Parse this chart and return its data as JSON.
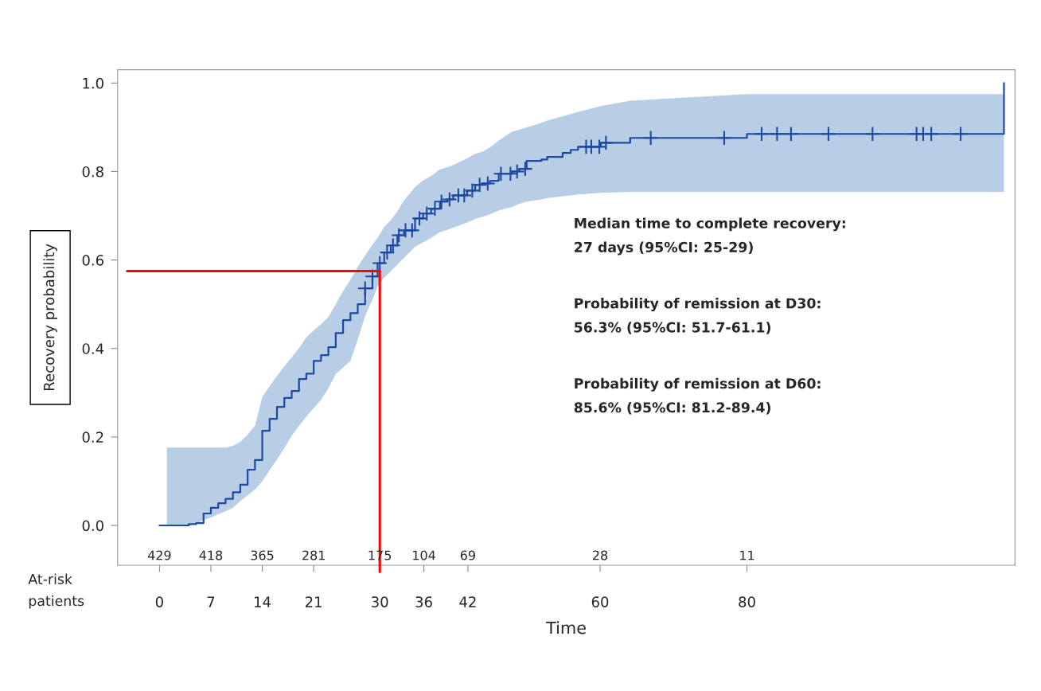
{
  "chart_data": {
    "type": "step",
    "xlabel": "Time",
    "ylabel": "Recovery probability",
    "xlim": [
      -5.7,
      116.5
    ],
    "ylim": [
      -0.09,
      1.03
    ],
    "xticks": [
      0,
      7,
      14,
      21,
      30,
      36,
      42,
      60,
      80
    ],
    "yticks": [
      {
        "value": 0,
        "label": "0.0"
      },
      {
        "value": 0.2,
        "label": "0.2"
      },
      {
        "value": 0.4,
        "label": "0.4"
      },
      {
        "value": 0.6,
        "label": "0.6"
      },
      {
        "value": 0.8,
        "label": "0.8"
      },
      {
        "value": 1,
        "label": "1.0"
      }
    ],
    "grid": false,
    "legend": false,
    "series": [
      {
        "color": "#1f48a0",
        "line_style": "solid",
        "marker": "none",
        "x": [
          0,
          1,
          4,
          5,
          6,
          7,
          8,
          9,
          10,
          11,
          12,
          13,
          14,
          15,
          16,
          17,
          18,
          19,
          20,
          21,
          22,
          23,
          24,
          25,
          26,
          27,
          28,
          29,
          29.7,
          30.6,
          31.5,
          32.4,
          33.3,
          34.8,
          35.9,
          37,
          38.2,
          39.2,
          40,
          41.9,
          43,
          44,
          45,
          46.2,
          48,
          49,
          50,
          52,
          52.8,
          54.9,
          56,
          57,
          60.1,
          64.1,
          80,
          115
        ],
        "values": [
          0,
          0,
          0.003,
          0.005,
          0.027,
          0.04,
          0.05,
          0.06,
          0.075,
          0.092,
          0.126,
          0.148,
          0.214,
          0.241,
          0.268,
          0.288,
          0.304,
          0.331,
          0.343,
          0.372,
          0.385,
          0.403,
          0.435,
          0.464,
          0.48,
          0.5,
          0.536,
          0.563,
          0.593,
          0.617,
          0.633,
          0.656,
          0.667,
          0.694,
          0.705,
          0.716,
          0.732,
          0.737,
          0.746,
          0.757,
          0.77,
          0.773,
          0.779,
          0.795,
          0.8,
          0.806,
          0.824,
          0.827,
          0.833,
          0.842,
          0.849,
          0.856,
          0.865,
          0.876,
          0.885,
          1.0
        ],
        "lower": [
          null,
          0,
          0,
          0.003,
          0.012,
          0.018,
          0.025,
          0.032,
          0.04,
          0.055,
          0.068,
          0.081,
          0.1,
          0.125,
          0.149,
          0.175,
          0.203,
          0.225,
          0.246,
          0.265,
          0.284,
          0.31,
          0.342,
          0.357,
          0.372,
          0.42,
          0.473,
          0.51,
          0.54,
          0.56,
          0.575,
          0.59,
          0.605,
          0.63,
          0.64,
          0.65,
          0.663,
          0.668,
          0.673,
          0.685,
          0.693,
          0.698,
          0.703,
          0.712,
          0.72,
          0.727,
          0.732,
          0.737,
          0.74,
          0.744,
          0.746,
          0.748,
          0.752,
          0.754,
          0.754,
          0.754
        ],
        "upper": [
          null,
          0.176,
          0.176,
          0.176,
          0.176,
          0.176,
          0.176,
          0.176,
          0.18,
          0.189,
          0.205,
          0.225,
          0.29,
          0.315,
          0.338,
          0.36,
          0.38,
          0.401,
          0.425,
          0.441,
          0.455,
          0.471,
          0.5,
          0.53,
          0.555,
          0.585,
          0.61,
          0.635,
          0.65,
          0.675,
          0.69,
          0.71,
          0.735,
          0.765,
          0.78,
          0.79,
          0.805,
          0.81,
          0.815,
          0.83,
          0.84,
          0.845,
          0.855,
          0.87,
          0.89,
          0.895,
          0.9,
          0.91,
          0.915,
          0.925,
          0.93,
          0.935,
          0.948,
          0.96,
          0.975,
          0.975
        ]
      },
      {
        "type": "scatter",
        "color": "#1f48a0",
        "marker": "cross",
        "x": [
          28,
          29,
          30,
          31,
          31.8,
          32.6,
          33.5,
          34.4,
          35.4,
          36.4,
          37.5,
          38.4,
          39.5,
          40.7,
          41.5,
          42.6,
          43.6,
          44.7,
          46.5,
          47.8,
          48.7,
          49.8,
          58.1,
          58.8,
          59.9,
          60.8,
          66.9,
          76.9,
          82,
          84.1,
          86,
          91.1,
          97.1,
          103.1,
          104,
          105.1,
          109.1
        ],
        "values": [
          0.536,
          0.563,
          0.593,
          0.617,
          0.633,
          0.656,
          0.667,
          0.667,
          0.694,
          0.705,
          0.716,
          0.732,
          0.737,
          0.746,
          0.746,
          0.757,
          0.77,
          0.773,
          0.795,
          0.795,
          0.8,
          0.806,
          0.856,
          0.856,
          0.856,
          0.865,
          0.876,
          0.876,
          0.885,
          0.885,
          0.885,
          0.885,
          0.885,
          0.885,
          0.885,
          0.885,
          0.885
        ]
      }
    ],
    "ref_lines": [
      {
        "axis": "y",
        "value": 0.575,
        "color": "#ff0000",
        "line_style": "solid"
      },
      {
        "axis": "x",
        "value": 30,
        "color": "#ff0000",
        "line_style": "solid"
      }
    ],
    "annotations": [
      "At-risk\npatients",
      "Median time to complete recovery:\n27 days (95%CI: 25-29)",
      "Probability of remission at D30:\n56.3% (95%CI: 51.7-61.1)",
      "Probability of remission at D60:\n85.6% (95%CI: 81.2-89.4)",
      "429",
      "418",
      "365",
      "281",
      "175",
      "104",
      "69",
      "28",
      "11"
    ]
  }
}
